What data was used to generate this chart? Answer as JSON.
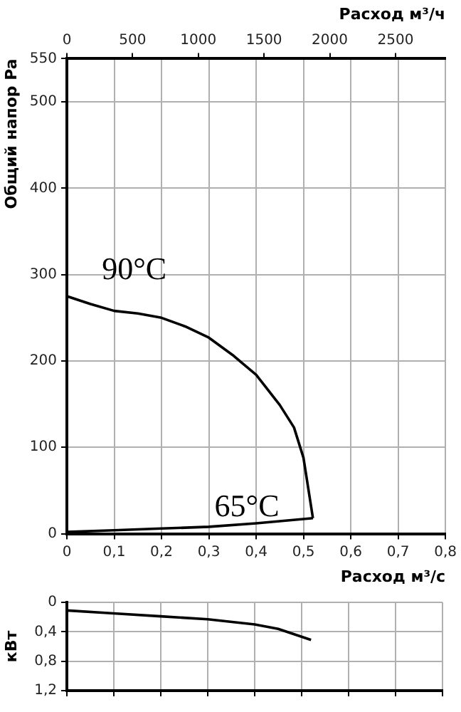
{
  "chart_data": [
    {
      "type": "line",
      "xlabel": "Расход м³/с",
      "ylabel": "Общий напор Pa",
      "x2label": "Расход м³/ч",
      "xlim": [
        0,
        0.8
      ],
      "xticks": [
        0,
        {
          "value": 0.1,
          "label": "0,1"
        },
        {
          "value": 0.2,
          "label": "0,2"
        },
        {
          "value": 0.3,
          "label": "0,3"
        },
        {
          "value": 0.4,
          "label": "0,4"
        },
        {
          "value": 0.5,
          "label": "0,5"
        },
        {
          "value": 0.6,
          "label": "0,6"
        },
        {
          "value": 0.7,
          "label": "0,7"
        },
        {
          "value": 0.8,
          "label": "0,8"
        }
      ],
      "x2lim": [
        0,
        2880
      ],
      "x2ticks": [
        0,
        500,
        1000,
        1500,
        2000,
        2500
      ],
      "ylim": [
        0,
        550
      ],
      "yticks": [
        0,
        100,
        200,
        300,
        400,
        500,
        550
      ],
      "grid": true,
      "legend": false,
      "marker": "none",
      "line_style": "solid",
      "series": [
        {
          "name": "90°C",
          "color": "#000000",
          "x": [
            0,
            0.05,
            0.1,
            0.15,
            0.2,
            0.25,
            0.3,
            0.35,
            0.4,
            0.45,
            0.48,
            0.5,
            0.52
          ],
          "values": [
            275,
            266,
            258,
            255,
            250,
            240,
            227,
            207,
            184,
            149,
            123,
            88,
            18
          ]
        },
        {
          "name": "65°C",
          "color": "#000000",
          "x": [
            0,
            0.1,
            0.2,
            0.3,
            0.4,
            0.52
          ],
          "values": [
            2,
            4,
            6,
            8,
            12,
            18
          ]
        }
      ]
    },
    {
      "type": "line",
      "ylabel": "кВт",
      "xlim": [
        0,
        0.8
      ],
      "xticks": [
        0,
        0.1,
        0.2,
        0.3,
        0.4,
        0.5,
        0.6,
        0.7,
        0.8
      ],
      "ylim": [
        1.2,
        0
      ],
      "yticks": [
        0,
        {
          "value": 0.4,
          "label": "0,4"
        },
        {
          "value": 0.8,
          "label": "0,8"
        },
        {
          "value": 1.2,
          "label": "1,2"
        }
      ],
      "tick_labels": "y",
      "grid": true,
      "legend": false,
      "marker": "none",
      "line_style": "solid",
      "series": [
        {
          "color": "#000000",
          "x": [
            0,
            0.1,
            0.2,
            0.3,
            0.4,
            0.45,
            0.52
          ],
          "values": [
            0.11,
            0.15,
            0.19,
            0.23,
            0.3,
            0.36,
            0.51
          ]
        }
      ]
    }
  ]
}
